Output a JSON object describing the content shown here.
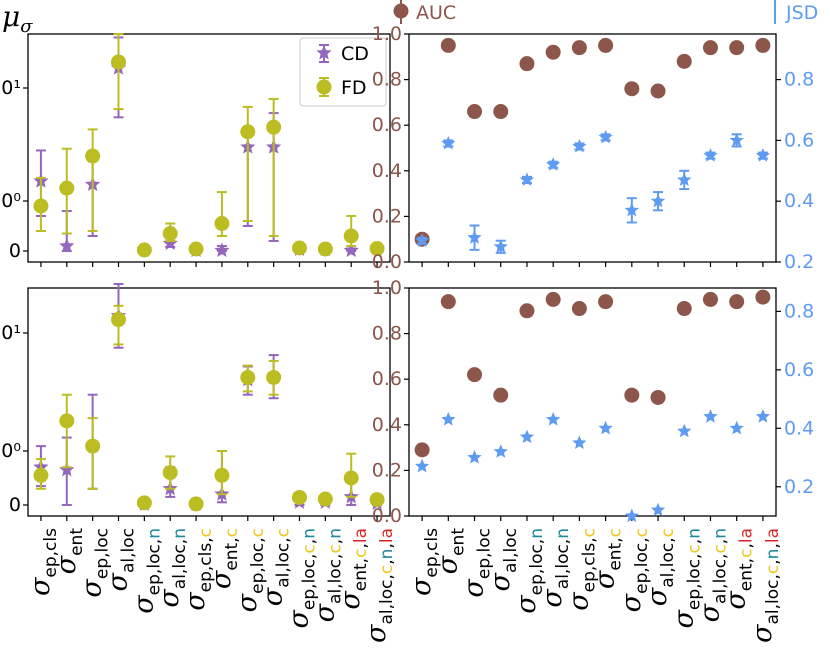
{
  "colors": {
    "cd": "#9467bd",
    "fd": "#bcbd22",
    "auc": "#8c564b",
    "jsd": "#5f9bf0",
    "n_color": "#1f8a9e",
    "c_color": "#f0c419",
    "la_color": "#d62728",
    "axis": "#000000"
  },
  "figure": {
    "ylabel_left": "μσ",
    "top_legend_auc": "AUC",
    "top_legend_jsd": "JSD"
  },
  "chart_data": [
    {
      "id": "top-left",
      "type": "scatter",
      "title": "",
      "ylabel": "μσ",
      "yscale": "symlog",
      "yticks": [
        "0",
        "10⁰",
        "10¹"
      ],
      "legend": [
        "CD",
        "FD"
      ],
      "legend_position": "top-right",
      "categories": [
        "σep,cls",
        "σent",
        "σep,loc",
        "σal,loc",
        "σep,loc,n",
        "σal,loc,n",
        "σep,cls,c",
        "σent,c",
        "σep,loc,c",
        "σal,loc,c",
        "σep,loc,c,n",
        "σal,loc,c,n",
        "σent,c,la",
        "σal,loc,c,n,la"
      ],
      "series": [
        {
          "name": "CD",
          "marker": "star",
          "values": [
            1.5,
            0.1,
            1.4,
            15.0,
            0.02,
            0.15,
            0.01,
            0.01,
            3.0,
            3.0,
            0.03,
            0.03,
            0.01,
            0.04
          ],
          "err_low": [
            0.7,
            0.0,
            0.3,
            5.5,
            0.0,
            0.08,
            0.0,
            0.0,
            0.5,
            0.2,
            0.0,
            0.0,
            0.0,
            0.0
          ],
          "err_high": [
            2.8,
            0.8,
            2.5,
            28.0,
            0.04,
            0.25,
            0.02,
            0.1,
            4.5,
            6.0,
            0.05,
            0.05,
            0.05,
            0.06
          ]
        },
        {
          "name": "FD",
          "marker": "circle",
          "values": [
            0.9,
            1.3,
            2.5,
            17.0,
            0.02,
            0.35,
            0.04,
            0.55,
            4.1,
            4.5,
            0.06,
            0.04,
            0.3,
            0.05
          ],
          "err_low": [
            0.4,
            0.35,
            0.4,
            6.5,
            0.0,
            0.2,
            0.0,
            0.3,
            0.6,
            0.3,
            0.0,
            0.0,
            0.1,
            0.0
          ],
          "err_high": [
            1.6,
            2.9,
            4.3,
            30.0,
            0.04,
            0.55,
            0.08,
            1.2,
            6.8,
            8.0,
            0.1,
            0.08,
            0.7,
            0.1
          ]
        }
      ]
    },
    {
      "id": "top-right",
      "type": "scatter",
      "title": "",
      "ylim_left": [
        0.0,
        1.0
      ],
      "ylim_right": [
        0.2,
        0.95
      ],
      "yticks_left": [
        "0.0",
        "0.2",
        "0.4",
        "0.6",
        "0.8",
        "1.0"
      ],
      "yticks_right": [
        "0.2",
        "0.4",
        "0.6",
        "0.8"
      ],
      "categories": [
        "σep,cls",
        "σent",
        "σep,loc",
        "σal,loc",
        "σep,loc,n",
        "σal,loc,n",
        "σep,cls,c",
        "σent,c",
        "σep,loc,c",
        "σal,loc,c",
        "σep,loc,c,n",
        "σal,loc,c,n",
        "σent,c,la",
        "σal,loc,c,n,la"
      ],
      "series": [
        {
          "name": "AUC",
          "axis": "left",
          "marker": "circle",
          "values": [
            0.1,
            0.95,
            0.66,
            0.66,
            0.87,
            0.92,
            0.94,
            0.95,
            0.76,
            0.75,
            0.88,
            0.94,
            0.94,
            0.95
          ]
        },
        {
          "name": "JSD",
          "axis": "right",
          "marker": "star",
          "values": [
            0.27,
            0.59,
            0.28,
            0.25,
            0.47,
            0.52,
            0.58,
            0.61,
            0.37,
            0.4,
            0.47,
            0.55,
            0.6,
            0.55
          ],
          "err_low": [
            0.26,
            0.58,
            0.24,
            0.23,
            0.46,
            0.51,
            0.57,
            0.6,
            0.33,
            0.37,
            0.44,
            0.54,
            0.58,
            0.54
          ],
          "err_high": [
            0.28,
            0.6,
            0.32,
            0.27,
            0.48,
            0.53,
            0.59,
            0.62,
            0.41,
            0.43,
            0.5,
            0.56,
            0.62,
            0.56
          ]
        }
      ]
    },
    {
      "id": "bottom-left",
      "type": "scatter",
      "title": "",
      "yscale": "symlog",
      "yticks": [
        "0",
        "10⁰",
        "10¹"
      ],
      "categories": [
        "σep,cls",
        "σent",
        "σep,loc",
        "σal,loc",
        "σep,loc,n",
        "σal,loc,n",
        "σep,cls,c",
        "σent,c",
        "σep,loc,c",
        "σal,loc,c",
        "σep,loc,c,n",
        "σal,loc,c,n",
        "σent,c,la",
        "σal,loc,c,n,la"
      ],
      "series": [
        {
          "name": "CD",
          "marker": "star",
          "values": [
            0.7,
            0.65,
            1.1,
            14.0,
            0.01,
            0.3,
            0.01,
            0.2,
            4.0,
            4.2,
            0.05,
            0.05,
            0.15,
            0.03
          ],
          "err_low": [
            0.35,
            0.0,
            0.3,
            7.5,
            0.0,
            0.15,
            0.0,
            0.05,
            3.0,
            2.8,
            0.0,
            0.0,
            0.0,
            0.0
          ],
          "err_high": [
            1.1,
            1.3,
            3.0,
            30.0,
            0.02,
            0.7,
            0.02,
            1.0,
            5.2,
            6.5,
            0.1,
            0.1,
            0.5,
            0.06
          ]
        },
        {
          "name": "FD",
          "marker": "circle",
          "values": [
            0.55,
            1.8,
            1.1,
            13.0,
            0.04,
            0.6,
            0.02,
            0.55,
            4.2,
            4.2,
            0.14,
            0.11,
            0.5,
            0.1
          ],
          "err_low": [
            0.3,
            0.7,
            0.3,
            8.0,
            0.0,
            0.3,
            0.0,
            0.2,
            3.2,
            3.0,
            0.05,
            0.05,
            0.15,
            0.05
          ],
          "err_high": [
            0.85,
            3.0,
            1.9,
            17.0,
            0.06,
            0.9,
            0.04,
            1.0,
            5.3,
            5.8,
            0.2,
            0.17,
            0.95,
            0.15
          ]
        }
      ]
    },
    {
      "id": "bottom-right",
      "type": "scatter",
      "title": "",
      "ylim_left": [
        0.0,
        1.0
      ],
      "ylim_right": [
        0.1,
        0.88
      ],
      "yticks_left": [
        "0.0",
        "0.2",
        "0.4",
        "0.6",
        "0.8",
        "1.0"
      ],
      "yticks_right": [
        "0.2",
        "0.4",
        "0.6",
        "0.8"
      ],
      "categories": [
        "σep,cls",
        "σent",
        "σep,loc",
        "σal,loc",
        "σep,loc,n",
        "σal,loc,n",
        "σep,cls,c",
        "σent,c",
        "σep,loc,c",
        "σal,loc,c",
        "σep,loc,c,n",
        "σal,loc,c,n",
        "σent,c,la",
        "σal,loc,c,n,la"
      ],
      "series": [
        {
          "name": "AUC",
          "axis": "left",
          "marker": "circle",
          "values": [
            0.29,
            0.94,
            0.62,
            0.53,
            0.9,
            0.95,
            0.91,
            0.94,
            0.53,
            0.52,
            0.91,
            0.95,
            0.94,
            0.96
          ]
        },
        {
          "name": "JSD",
          "axis": "right",
          "marker": "star",
          "values": [
            0.27,
            0.43,
            0.3,
            0.32,
            0.37,
            0.43,
            0.35,
            0.4,
            0.1,
            0.12,
            0.39,
            0.44,
            0.4,
            0.44
          ]
        }
      ]
    }
  ],
  "categories_display": [
    {
      "base": "σ",
      "parts": [
        {
          "t": "ep,cls",
          "c": "plain"
        }
      ]
    },
    {
      "base": "σ",
      "parts": [
        {
          "t": "ent",
          "c": "plain"
        }
      ]
    },
    {
      "base": "σ",
      "parts": [
        {
          "t": "ep,loc",
          "c": "plain"
        }
      ]
    },
    {
      "base": "σ",
      "parts": [
        {
          "t": "al,loc",
          "c": "plain"
        }
      ]
    },
    {
      "base": "σ",
      "parts": [
        {
          "t": "ep,loc,",
          "c": "plain"
        },
        {
          "t": "n",
          "c": "n"
        }
      ]
    },
    {
      "base": "σ",
      "parts": [
        {
          "t": "al,loc,",
          "c": "plain"
        },
        {
          "t": "n",
          "c": "n"
        }
      ]
    },
    {
      "base": "σ",
      "parts": [
        {
          "t": "ep,cls,",
          "c": "plain"
        },
        {
          "t": "c",
          "c": "c"
        }
      ]
    },
    {
      "base": "σ",
      "parts": [
        {
          "t": "ent,",
          "c": "plain"
        },
        {
          "t": "c",
          "c": "c"
        }
      ]
    },
    {
      "base": "σ",
      "parts": [
        {
          "t": "ep,loc,",
          "c": "plain"
        },
        {
          "t": "c",
          "c": "c"
        }
      ]
    },
    {
      "base": "σ",
      "parts": [
        {
          "t": "al,loc,",
          "c": "plain"
        },
        {
          "t": "c",
          "c": "c"
        }
      ]
    },
    {
      "base": "σ",
      "parts": [
        {
          "t": "ep,loc,",
          "c": "plain"
        },
        {
          "t": "c",
          "c": "c"
        },
        {
          "t": ",",
          "c": "plain"
        },
        {
          "t": "n",
          "c": "n"
        }
      ]
    },
    {
      "base": "σ",
      "parts": [
        {
          "t": "al,loc,",
          "c": "plain"
        },
        {
          "t": "c",
          "c": "c"
        },
        {
          "t": ",",
          "c": "plain"
        },
        {
          "t": "n",
          "c": "n"
        }
      ]
    },
    {
      "base": "σ",
      "parts": [
        {
          "t": "ent,",
          "c": "plain"
        },
        {
          "t": "c",
          "c": "c"
        },
        {
          "t": ",",
          "c": "plain"
        },
        {
          "t": "la",
          "c": "la"
        }
      ]
    },
    {
      "base": "σ",
      "parts": [
        {
          "t": "al,loc,",
          "c": "plain"
        },
        {
          "t": "c",
          "c": "c"
        },
        {
          "t": ",",
          "c": "plain"
        },
        {
          "t": "n",
          "c": "n"
        },
        {
          "t": ",",
          "c": "plain"
        },
        {
          "t": "la",
          "c": "la"
        }
      ]
    }
  ]
}
